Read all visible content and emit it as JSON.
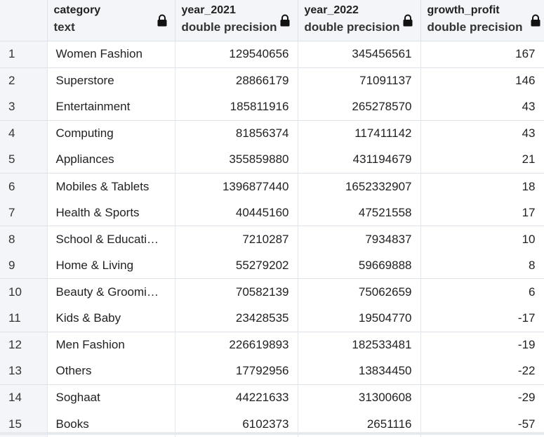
{
  "columns": [
    {
      "name": "category",
      "type": "text"
    },
    {
      "name": "year_2021",
      "type": "double precision"
    },
    {
      "name": "year_2022",
      "type": "double precision"
    },
    {
      "name": "growth_profit",
      "type": "double precision"
    }
  ],
  "icons": {
    "lock": "lock-icon"
  },
  "rows": [
    {
      "n": "1",
      "category": "Women Fashion",
      "year_2021": "129540656",
      "year_2022": "345456561",
      "growth_profit": "167"
    },
    {
      "n": "2",
      "category": "Superstore",
      "year_2021": "28866179",
      "year_2022": "71091137",
      "growth_profit": "146"
    },
    {
      "n": "3",
      "category": "Entertainment",
      "year_2021": "185811916",
      "year_2022": "265278570",
      "growth_profit": "43"
    },
    {
      "n": "4",
      "category": "Computing",
      "year_2021": "81856374",
      "year_2022": "117411142",
      "growth_profit": "43"
    },
    {
      "n": "5",
      "category": "Appliances",
      "year_2021": "355859880",
      "year_2022": "431194679",
      "growth_profit": "21"
    },
    {
      "n": "6",
      "category": "Mobiles & Tablets",
      "year_2021": "1396877440",
      "year_2022": "1652332907",
      "growth_profit": "18"
    },
    {
      "n": "7",
      "category": "Health & Sports",
      "year_2021": "40445160",
      "year_2022": "47521558",
      "growth_profit": "17"
    },
    {
      "n": "8",
      "category": "School & Educati…",
      "year_2021": "7210287",
      "year_2022": "7934837",
      "growth_profit": "10"
    },
    {
      "n": "9",
      "category": "Home & Living",
      "year_2021": "55279202",
      "year_2022": "59669888",
      "growth_profit": "8"
    },
    {
      "n": "10",
      "category": "Beauty & Groomi…",
      "year_2021": "70582139",
      "year_2022": "75062659",
      "growth_profit": "6"
    },
    {
      "n": "11",
      "category": "Kids & Baby",
      "year_2021": "23428535",
      "year_2022": "19504770",
      "growth_profit": "-17"
    },
    {
      "n": "12",
      "category": "Men Fashion",
      "year_2021": "226619893",
      "year_2022": "182533481",
      "growth_profit": "-19"
    },
    {
      "n": "13",
      "category": "Others",
      "year_2021": "17792956",
      "year_2022": "13834450",
      "growth_profit": "-22"
    },
    {
      "n": "14",
      "category": "Soghaat",
      "year_2021": "44221633",
      "year_2022": "31300608",
      "growth_profit": "-29"
    },
    {
      "n": "15",
      "category": "Books",
      "year_2021": "6102373",
      "year_2022": "2651116",
      "growth_profit": "-57"
    }
  ]
}
